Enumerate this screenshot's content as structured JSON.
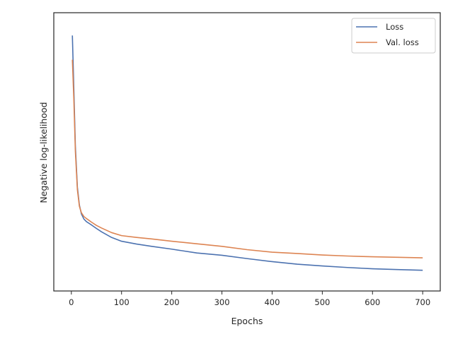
{
  "chart_data": {
    "type": "line",
    "title": "",
    "xlabel": "Epochs",
    "ylabel": "Negative log-likelihood",
    "xlim": [
      -35,
      735
    ],
    "ylim": [
      0,
      1
    ],
    "yticks_shown": false,
    "xticks": [
      0,
      100,
      200,
      300,
      400,
      500,
      600,
      700
    ],
    "xtick_labels": [
      "0",
      "100",
      "200",
      "300",
      "400",
      "500",
      "600",
      "700"
    ],
    "grid": false,
    "legend": {
      "placement": "top-right",
      "entries": [
        "Loss",
        "Val. loss"
      ]
    },
    "series": [
      {
        "name": "Loss",
        "color": "#4c72b0",
        "x": [
          2,
          5,
          8,
          12,
          16,
          20,
          25,
          30,
          40,
          50,
          60,
          80,
          100,
          130,
          160,
          200,
          250,
          300,
          350,
          400,
          450,
          500,
          550,
          600,
          650,
          700
        ],
        "y": [
          0.955,
          0.74,
          0.52,
          0.36,
          0.29,
          0.255,
          0.235,
          0.225,
          0.212,
          0.198,
          0.185,
          0.163,
          0.148,
          0.137,
          0.128,
          0.117,
          0.102,
          0.093,
          0.08,
          0.068,
          0.058,
          0.051,
          0.045,
          0.04,
          0.037,
          0.034
        ]
      },
      {
        "name": "Val. loss",
        "color": "#dd8452",
        "x": [
          2,
          5,
          8,
          12,
          16,
          20,
          25,
          30,
          40,
          50,
          60,
          80,
          100,
          130,
          160,
          200,
          250,
          300,
          350,
          400,
          450,
          500,
          550,
          600,
          650,
          700
        ],
        "y": [
          0.86,
          0.7,
          0.5,
          0.35,
          0.285,
          0.26,
          0.245,
          0.237,
          0.223,
          0.21,
          0.2,
          0.182,
          0.17,
          0.163,
          0.157,
          0.148,
          0.138,
          0.128,
          0.115,
          0.105,
          0.1,
          0.094,
          0.09,
          0.087,
          0.085,
          0.083
        ]
      }
    ]
  }
}
